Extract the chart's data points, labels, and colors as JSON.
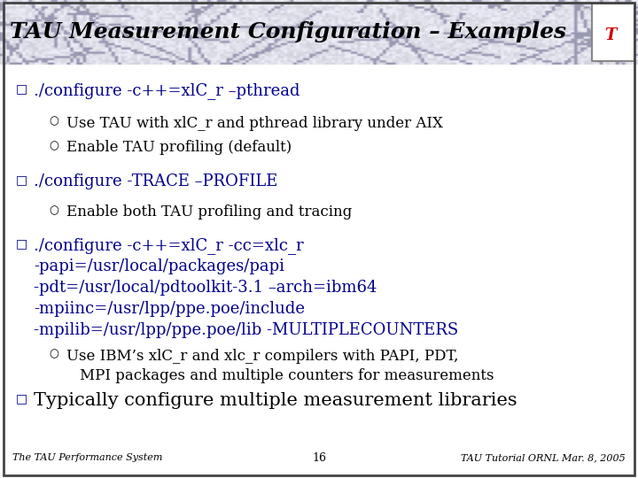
{
  "title": "TAU Measurement Configuration – Examples",
  "bg_color": "#ffffff",
  "title_bg_light": "#d8d8e8",
  "title_bg_dark": "#b0b0c0",
  "bullet_color": "#00008B",
  "text_color": "#000000",
  "footer_left": "The TAU Performance System",
  "footer_center": "16",
  "footer_right": "TAU Tutorial ORNL Mar. 8, 2005",
  "bullet1_main": "./configure -c++=xlC_r –pthread",
  "bullet1_sub1": "Use TAU with xlC_r and pthread library under AIX",
  "bullet1_sub2": "Enable TAU profiling (default)",
  "bullet2_main": "./configure -TRACE –PROFILE",
  "bullet2_sub1": "Enable both TAU profiling and tracing",
  "bullet3_line1": "./configure -c++=xlC_r -cc=xlc_r",
  "bullet3_line2": "-papi=/usr/local/packages/papi",
  "bullet3_line3": "-pdt=/usr/local/pdtoolkit-3.1 –arch=ibm64",
  "bullet3_line4": "-mpiinc=/usr/lpp/ppe.poe/include",
  "bullet3_line5": "-mpilib=/usr/lpp/ppe.poe/lib -MULTIPLECOUNTERS",
  "bullet3_sub1a": "Use IBM’s xlC_r and xlc_r compilers with PAPI, PDT,",
  "bullet3_sub1b": "MPI packages and multiple counters for measurements",
  "bullet4_main": "Typically configure multiple measurement libraries",
  "title_fontsize": 18,
  "main_fontsize": 13,
  "sub_fontsize": 12,
  "b4_fontsize": 15,
  "footer_fontsize": 8
}
